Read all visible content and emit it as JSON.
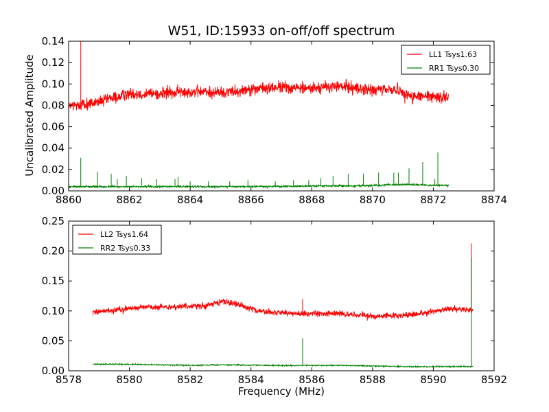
{
  "title": "W51, ID:15933 on-off/off spectrum",
  "ylabel": "Uncalibrated Amplitude",
  "xlabel": "Frequency (MHz)",
  "chart_data": [
    {
      "type": "line",
      "xlim": [
        8860,
        8874
      ],
      "ylim": [
        0,
        0.14
      ],
      "xticks": [
        "8860",
        "8862",
        "8864",
        "8866",
        "8868",
        "8870",
        "8872",
        "8874"
      ],
      "yticks": [
        "0.00",
        "0.02",
        "0.04",
        "0.06",
        "0.08",
        "0.10",
        "0.12",
        "0.14"
      ],
      "legend_position": "top-right",
      "series": [
        {
          "name": "LL1 Tsys1.63",
          "color": "#ff0000",
          "noise": 0.004,
          "x_range": [
            8860,
            8872.5
          ],
          "baseline": [
            [
              8860.0,
              0.079
            ],
            [
              8861.0,
              0.083
            ],
            [
              8862.0,
              0.091
            ],
            [
              8863.0,
              0.091
            ],
            [
              8864.0,
              0.093
            ],
            [
              8865.0,
              0.092
            ],
            [
              8866.0,
              0.095
            ],
            [
              8867.0,
              0.097
            ],
            [
              8868.0,
              0.096
            ],
            [
              8869.0,
              0.098
            ],
            [
              8870.0,
              0.094
            ],
            [
              8870.8,
              0.095
            ],
            [
              8871.3,
              0.088
            ],
            [
              8872.5,
              0.088
            ]
          ],
          "spikes": [
            [
              8860.4,
              0.14
            ]
          ]
        },
        {
          "name": "RR1 Tsys0.30",
          "color": "#008000",
          "noise": 0.0006,
          "x_range": [
            8860,
            8872.5
          ],
          "baseline": [
            [
              8860.0,
              0.004
            ],
            [
              8866.0,
              0.004
            ],
            [
              8870.0,
              0.005
            ],
            [
              8871.0,
              0.006
            ],
            [
              8872.5,
              0.005
            ]
          ],
          "spikes": [
            [
              8860.4,
              0.031
            ],
            [
              8860.95,
              0.018
            ],
            [
              8861.4,
              0.016
            ],
            [
              8861.6,
              0.011
            ],
            [
              8861.9,
              0.014
            ],
            [
              8862.4,
              0.012
            ],
            [
              8862.9,
              0.011
            ],
            [
              8863.5,
              0.011
            ],
            [
              8863.6,
              0.013
            ],
            [
              8864.0,
              0.009
            ],
            [
              8864.6,
              0.009
            ],
            [
              8865.3,
              0.009
            ],
            [
              8865.9,
              0.01
            ],
            [
              8866.8,
              0.009
            ],
            [
              8867.4,
              0.01
            ],
            [
              8867.9,
              0.01
            ],
            [
              8868.3,
              0.012
            ],
            [
              8868.7,
              0.014
            ],
            [
              8869.2,
              0.016
            ],
            [
              8869.7,
              0.016
            ],
            [
              8870.2,
              0.017
            ],
            [
              8870.7,
              0.017
            ],
            [
              8870.85,
              0.017
            ],
            [
              8871.2,
              0.021
            ],
            [
              8871.65,
              0.027
            ],
            [
              8872.05,
              0.011
            ],
            [
              8872.15,
              0.036
            ]
          ]
        }
      ]
    },
    {
      "type": "line",
      "xlim": [
        8578,
        8592
      ],
      "ylim": [
        0,
        0.25
      ],
      "xticks": [
        "8578",
        "8580",
        "8582",
        "8584",
        "8586",
        "8588",
        "8590",
        "8592"
      ],
      "yticks": [
        "0.00",
        "0.05",
        "0.10",
        "0.15",
        "0.20",
        "0.25"
      ],
      "legend_position": "top-left",
      "series": [
        {
          "name": "LL2 Tsys1.64",
          "color": "#ff0000",
          "noise": 0.0035,
          "x_range": [
            8578.8,
            8591.3
          ],
          "baseline": [
            [
              8578.8,
              0.099
            ],
            [
              8579.5,
              0.101
            ],
            [
              8580.5,
              0.107
            ],
            [
              8581.5,
              0.107
            ],
            [
              8582.5,
              0.108
            ],
            [
              8583.1,
              0.117
            ],
            [
              8583.6,
              0.11
            ],
            [
              8584.2,
              0.1
            ],
            [
              8585.0,
              0.097
            ],
            [
              8585.6,
              0.095
            ],
            [
              8586.5,
              0.096
            ],
            [
              8587.5,
              0.094
            ],
            [
              8588.2,
              0.09
            ],
            [
              8589.0,
              0.093
            ],
            [
              8589.8,
              0.097
            ],
            [
              8590.5,
              0.104
            ],
            [
              8591.3,
              0.102
            ]
          ],
          "spikes": [
            [
              8585.7,
              0.12
            ],
            [
              8591.25,
              0.213
            ]
          ]
        },
        {
          "name": "RR2 Tsys0.33",
          "color": "#008000",
          "noise": 0.0007,
          "x_range": [
            8578.8,
            8591.3
          ],
          "baseline": [
            [
              8578.8,
              0.011
            ],
            [
              8580.0,
              0.011
            ],
            [
              8581.0,
              0.01
            ],
            [
              8582.0,
              0.009
            ],
            [
              8583.0,
              0.01
            ],
            [
              8585.0,
              0.009
            ],
            [
              8587.0,
              0.009
            ],
            [
              8589.0,
              0.007
            ],
            [
              8591.3,
              0.007
            ]
          ],
          "spikes": [
            [
              8585.7,
              0.055
            ],
            [
              8591.25,
              0.19
            ]
          ]
        }
      ]
    }
  ]
}
